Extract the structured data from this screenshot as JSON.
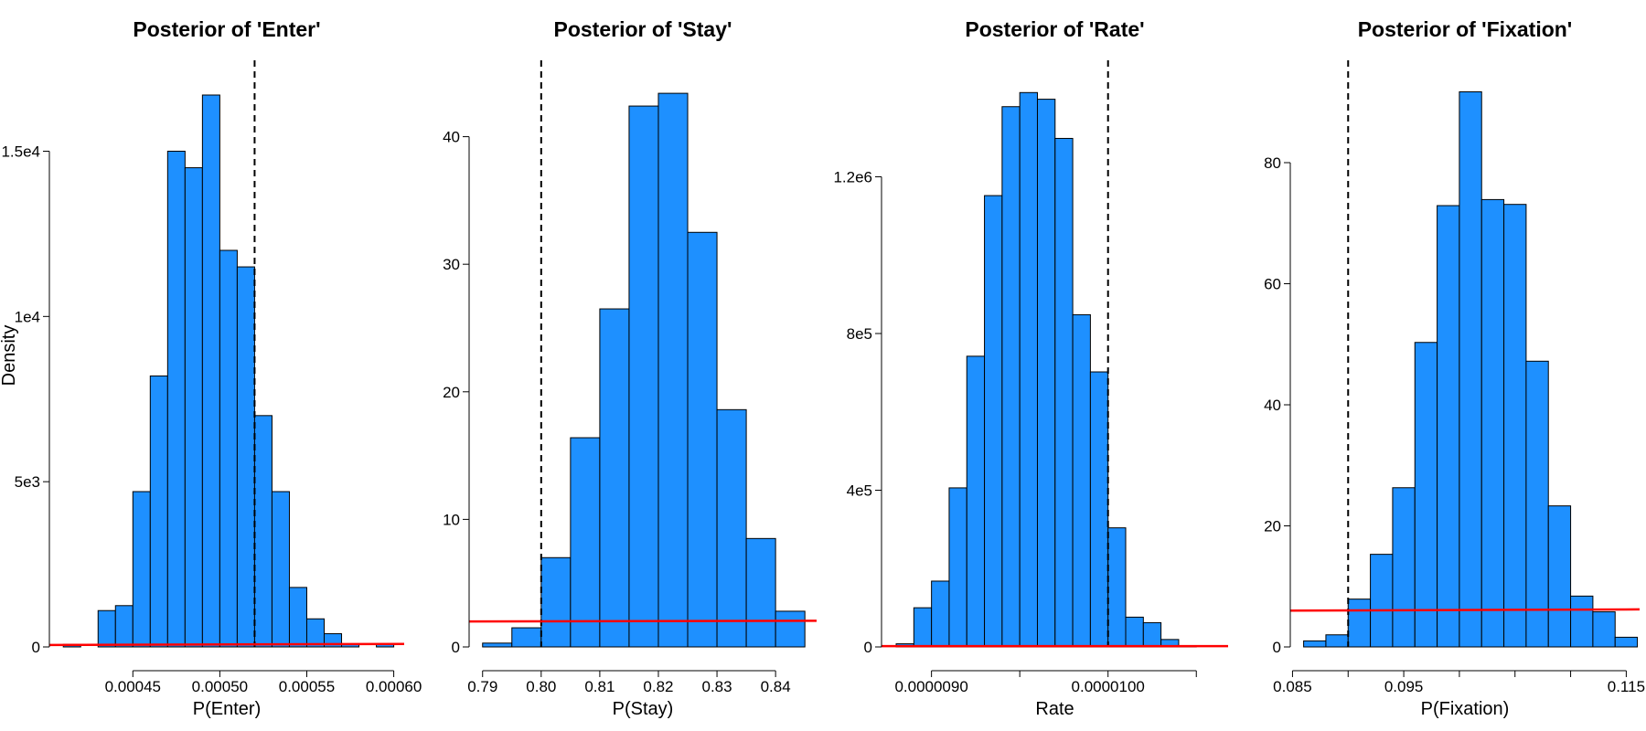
{
  "chart_data": [
    {
      "type": "histogram",
      "title": "Posterior of 'Enter'",
      "x_label": "P(Enter)",
      "y_label": "Density",
      "color": "#1e90ff",
      "bins": [
        0.00041,
        0.00042,
        0.00043,
        0.00044,
        0.00045,
        0.00046,
        0.00047,
        0.00048,
        0.00049,
        0.0005,
        0.00051,
        0.00052,
        0.00053,
        0.00054,
        0.00055,
        0.00056,
        0.00057,
        0.00058,
        0.00059,
        0.0006
      ],
      "values": [
        80,
        0,
        1100,
        1250,
        4700,
        8200,
        15000,
        14500,
        16700,
        12000,
        11500,
        7000,
        4700,
        1800,
        850,
        400,
        80,
        0,
        80
      ],
      "xlim": [
        0.000402,
        0.000606
      ],
      "ylim": [
        0,
        17640
      ],
      "xticks": [
        {
          "value": 0.00045,
          "label": "0.00045"
        },
        {
          "value": 0.0005,
          "label": "0.00050"
        },
        {
          "value": 0.00055,
          "label": "0.00055"
        },
        {
          "value": 0.0006,
          "label": "0.00060"
        }
      ],
      "yticks": [
        0,
        {
          "value": 5000,
          "label": "5e3"
        },
        {
          "value": 10000,
          "label": "1e4"
        },
        {
          "value": 15000,
          "label": "1.5e4"
        }
      ],
      "vline": 0.00052,
      "prior": {
        "color": "#ff0000",
        "x": [
          0.000402,
          0.000606
        ],
        "y": [
          60,
          90
        ]
      }
    },
    {
      "type": "histogram",
      "title": "Posterior of 'Stay'",
      "x_label": "P(Stay)",
      "color": "#1e90ff",
      "bins": [
        0.79,
        0.795,
        0.8,
        0.805,
        0.81,
        0.815,
        0.82,
        0.825,
        0.83,
        0.835,
        0.84,
        0.845
      ],
      "values": [
        0.3,
        1.5,
        7,
        16.4,
        26.5,
        42.4,
        43.4,
        32.5,
        18.6,
        8.5,
        2.8
      ],
      "xlim": [
        0.7877,
        0.847
      ],
      "ylim": [
        0,
        45.7
      ],
      "xticks": [
        0.79,
        {
          "value": 0.8,
          "label": "0.80"
        },
        0.81,
        0.82,
        0.83,
        0.84
      ],
      "yticks": [
        0,
        10,
        20,
        30,
        40
      ],
      "vline": 0.8,
      "prior": {
        "color": "#ff0000",
        "x": [
          0.7877,
          0.847
        ],
        "y": [
          2.0,
          2.05
        ]
      }
    },
    {
      "type": "histogram",
      "title": "Posterior of 'Rate'",
      "x_label": "Rate",
      "color": "#1e90ff",
      "bins": [
        8.8e-06,
        8.9e-06,
        9e-06,
        9.1e-06,
        9.2e-06,
        9.3e-06,
        9.4e-06,
        9.5e-06,
        9.6e-06,
        9.7e-06,
        9.8e-06,
        9.9e-06,
        1e-05,
        1.01e-05,
        1.02e-05,
        1.03e-05,
        1.04e-05,
        1.05e-05
      ],
      "values": [
        8000,
        100000,
        168000,
        406000,
        742000,
        1152000,
        1379000,
        1415000,
        1398000,
        1298000,
        848000,
        702000,
        304000,
        76000,
        62000,
        19000,
        2000
      ],
      "xlim": [
        8.717e-06,
        1.068e-05
      ],
      "ylim": [
        0,
        1488000
      ],
      "xticks": [
        {
          "value": 9e-06,
          "label": "0.0000090"
        },
        {
          "value": 9.5e-06,
          "label": null
        },
        {
          "value": 1e-05,
          "label": "0.0000100"
        },
        {
          "value": 1.05e-05,
          "label": null
        }
      ],
      "yticks": [
        0,
        {
          "value": 400000,
          "label": "4e5"
        },
        {
          "value": 800000,
          "label": "8e5"
        },
        {
          "value": 1200000,
          "label": "1.2e6"
        }
      ],
      "vline": 1e-05,
      "prior": {
        "color": "#ff0000",
        "x": [
          8.717e-06,
          1.068e-05
        ],
        "y": [
          2000,
          2000
        ]
      }
    },
    {
      "type": "histogram",
      "title": "Posterior of 'Fixation'",
      "x_label": "P(Fixation)",
      "color": "#1e90ff",
      "bins": [
        0.086,
        0.088,
        0.09,
        0.092,
        0.094,
        0.096,
        0.098,
        0.1,
        0.102,
        0.104,
        0.106,
        0.108,
        0.11,
        0.112,
        0.114,
        0.116
      ],
      "values": [
        1,
        2,
        7.9,
        15.3,
        26.3,
        50.3,
        72.9,
        91.7,
        73.9,
        73.1,
        47.2,
        23.3,
        8.4,
        5.8,
        1.6
      ],
      "xlim": [
        0.0848,
        0.1162
      ],
      "ylim": [
        0,
        96.3
      ],
      "xticks": [
        0.085,
        {
          "value": 0.09,
          "label": null
        },
        0.095,
        {
          "value": 0.1,
          "label": null
        },
        {
          "value": 0.105,
          "label": null
        },
        {
          "value": 0.11,
          "label": null
        },
        0.115
      ],
      "yticks": [
        0,
        20,
        40,
        60,
        80
      ],
      "vline": 0.09,
      "prior": {
        "color": "#ff0000",
        "x": [
          0.0848,
          0.1162
        ],
        "y": [
          6.0,
          6.2
        ]
      }
    }
  ]
}
